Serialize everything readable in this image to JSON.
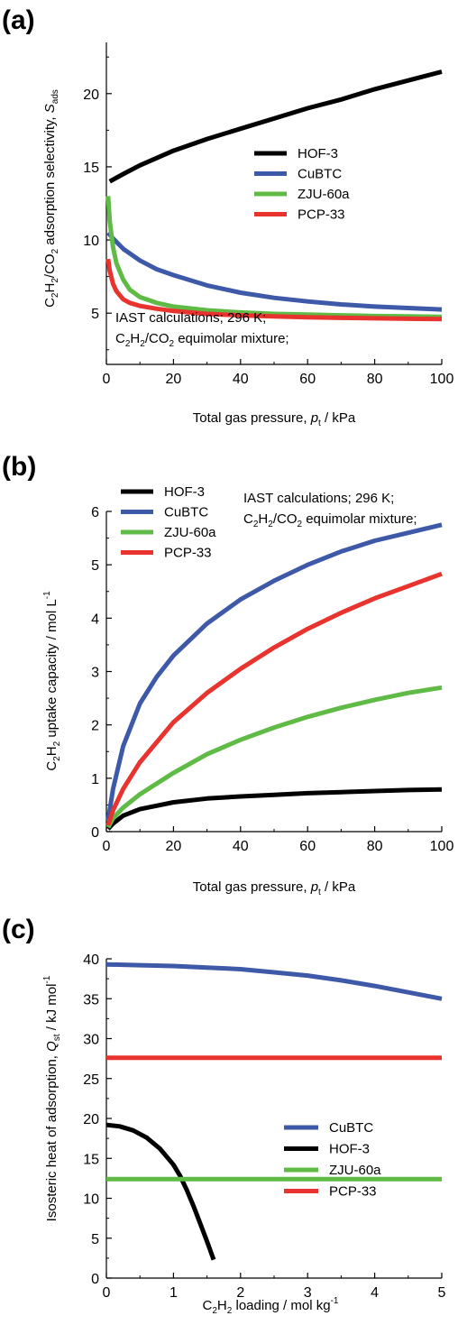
{
  "chart_data": [
    {
      "type": "line",
      "panel_label": "(a)",
      "xlabel": "Total gas pressure, p_t / kPa",
      "ylabel": "C2H2/CO2 adsorption selectivity, S_ads",
      "xlim": [
        0,
        100
      ],
      "ylim": [
        1.5,
        23.5
      ],
      "xticks": [
        0,
        20,
        40,
        60,
        80,
        100
      ],
      "yticks": [
        5,
        10,
        15,
        20
      ],
      "legend_position": "upper-right",
      "annotation": [
        "IAST calculations; 296 K;",
        "C2H2/CO2 equimolar mixture;"
      ],
      "series": [
        {
          "name": "HOF-3",
          "color": "#000000",
          "x": [
            1,
            5,
            10,
            20,
            30,
            40,
            50,
            60,
            70,
            80,
            90,
            100
          ],
          "y": [
            14.0,
            14.5,
            15.1,
            16.1,
            16.9,
            17.6,
            18.3,
            19.0,
            19.6,
            20.3,
            20.9,
            21.5
          ]
        },
        {
          "name": "CuBTC",
          "color": "#3e59a8",
          "x": [
            0.5,
            2,
            5,
            10,
            15,
            20,
            30,
            40,
            50,
            60,
            70,
            80,
            90,
            100
          ],
          "y": [
            10.5,
            10.1,
            9.4,
            8.6,
            8.0,
            7.6,
            6.9,
            6.4,
            6.05,
            5.8,
            5.6,
            5.45,
            5.35,
            5.25
          ]
        },
        {
          "name": "ZJU-60a",
          "color": "#5fbb46",
          "x": [
            0.5,
            1,
            2,
            3,
            5,
            7,
            10,
            15,
            20,
            30,
            40,
            50,
            60,
            70,
            80,
            90,
            100
          ],
          "y": [
            13.0,
            11.3,
            9.5,
            8.4,
            7.3,
            6.6,
            6.1,
            5.7,
            5.45,
            5.2,
            5.05,
            4.95,
            4.9,
            4.85,
            4.8,
            4.78,
            4.75
          ]
        },
        {
          "name": "PCP-33",
          "color": "#e8332e",
          "x": [
            0.5,
            1,
            2,
            3,
            5,
            7,
            10,
            15,
            20,
            30,
            40,
            50,
            60,
            70,
            80,
            90,
            100
          ],
          "y": [
            8.7,
            7.9,
            7.0,
            6.5,
            5.95,
            5.7,
            5.5,
            5.3,
            5.15,
            4.95,
            4.85,
            4.78,
            4.72,
            4.68,
            4.65,
            4.62,
            4.6
          ]
        }
      ]
    },
    {
      "type": "line",
      "panel_label": "(b)",
      "xlabel": "Total gas pressure, p_t / kPa",
      "ylabel": "C2H2 uptake capacity / mol L-1",
      "xlim": [
        0,
        100
      ],
      "ylim": [
        0,
        6
      ],
      "xticks": [
        0,
        20,
        40,
        60,
        80,
        100
      ],
      "yticks": [
        0,
        1,
        2,
        3,
        4,
        5,
        6
      ],
      "legend_position": "upper-left",
      "annotation": [
        "IAST calculations; 296 K;",
        "C2H2/CO2 equimolar mixture;"
      ],
      "series": [
        {
          "name": "HOF-3",
          "color": "#000000",
          "x": [
            0.5,
            2,
            5,
            10,
            20,
            30,
            40,
            50,
            60,
            70,
            80,
            90,
            100
          ],
          "y": [
            0.05,
            0.15,
            0.3,
            0.42,
            0.55,
            0.62,
            0.66,
            0.69,
            0.72,
            0.74,
            0.76,
            0.78,
            0.79
          ]
        },
        {
          "name": "CuBTC",
          "color": "#3e59a8",
          "x": [
            0.5,
            2,
            5,
            10,
            15,
            20,
            30,
            40,
            50,
            60,
            70,
            80,
            90,
            100
          ],
          "y": [
            0.22,
            0.8,
            1.6,
            2.4,
            2.9,
            3.3,
            3.9,
            4.35,
            4.7,
            5.0,
            5.25,
            5.45,
            5.6,
            5.75
          ]
        },
        {
          "name": "ZJU-60a",
          "color": "#5fbb46",
          "x": [
            0.5,
            2,
            5,
            10,
            20,
            30,
            40,
            50,
            60,
            70,
            80,
            90,
            100
          ],
          "y": [
            0.08,
            0.25,
            0.45,
            0.7,
            1.1,
            1.45,
            1.72,
            1.95,
            2.15,
            2.32,
            2.47,
            2.6,
            2.7
          ]
        },
        {
          "name": "PCP-33",
          "color": "#e8332e",
          "x": [
            0.5,
            2,
            5,
            10,
            20,
            30,
            40,
            50,
            60,
            70,
            80,
            90,
            100
          ],
          "y": [
            0.12,
            0.4,
            0.8,
            1.3,
            2.05,
            2.6,
            3.05,
            3.45,
            3.8,
            4.1,
            4.37,
            4.6,
            4.83
          ]
        }
      ]
    },
    {
      "type": "line",
      "panel_label": "(c)",
      "xlabel": "C2H2 loading / mol kg-1",
      "ylabel": "Isosteric heat of adsorption, Q_st / kJ mol-1",
      "xlim": [
        0,
        5
      ],
      "ylim": [
        0,
        40
      ],
      "xticks": [
        0,
        1,
        2,
        3,
        4,
        5
      ],
      "yticks": [
        0,
        5,
        10,
        15,
        20,
        25,
        30,
        35,
        40
      ],
      "legend_position": "right",
      "series": [
        {
          "name": "CuBTC",
          "color": "#3e59a8",
          "x": [
            0,
            0.5,
            1,
            1.5,
            2,
            2.5,
            3,
            3.5,
            4,
            4.5,
            5
          ],
          "y": [
            39.3,
            39.2,
            39.1,
            38.9,
            38.7,
            38.3,
            37.9,
            37.3,
            36.6,
            35.8,
            35.0
          ]
        },
        {
          "name": "HOF-3",
          "color": "#000000",
          "x": [
            0,
            0.2,
            0.4,
            0.6,
            0.8,
            1.0,
            1.1,
            1.2,
            1.3,
            1.4,
            1.5,
            1.6
          ],
          "y": [
            19.2,
            19.0,
            18.5,
            17.6,
            16.2,
            14.2,
            12.8,
            11.0,
            9.0,
            6.8,
            4.6,
            2.3
          ]
        },
        {
          "name": "ZJU-60a",
          "color": "#5fbb46",
          "x": [
            0,
            5
          ],
          "y": [
            12.4,
            12.4
          ]
        },
        {
          "name": "PCP-33",
          "color": "#e8332e",
          "x": [
            0,
            5
          ],
          "y": [
            27.6,
            27.6
          ]
        }
      ]
    }
  ]
}
